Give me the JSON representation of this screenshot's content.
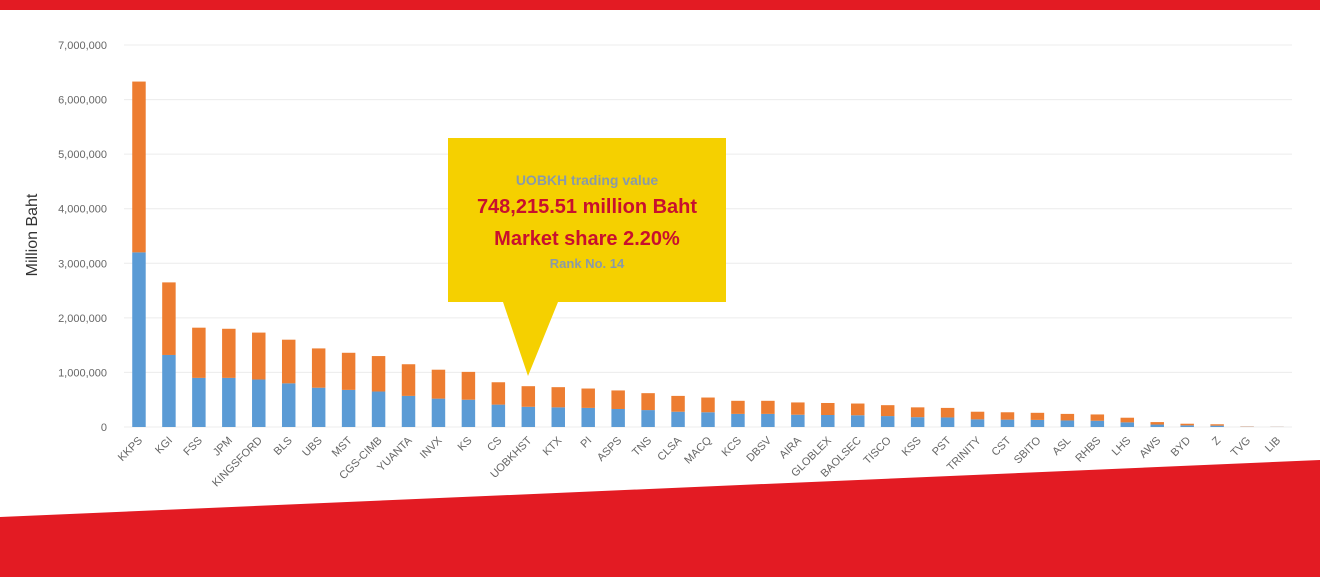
{
  "colors": {
    "accent_red": "#e31b23",
    "series_bottom": "#5b9bd5",
    "series_top": "#ed7d31",
    "callout_bg": "#f5d000",
    "grid": "#ececec"
  },
  "chart_data": {
    "type": "bar",
    "stacked": true,
    "ylabel": "Million Baht",
    "ylim": [
      0,
      7000000
    ],
    "yticks": [
      "7,000,000",
      "6,000,000",
      "5,000,000",
      "4,000,000",
      "3,000,000",
      "2,000,000",
      "1,000,000",
      "0"
    ],
    "ytick_values": [
      7000000,
      6000000,
      5000000,
      4000000,
      3000000,
      2000000,
      1000000,
      0
    ],
    "grid": true,
    "categories": [
      "KKPS",
      "KGI",
      "FSS",
      "JPM",
      "KINGSFORD",
      "BLS",
      "UBS",
      "MST",
      "CGS-CIMB",
      "YUANTA",
      "INVX",
      "KS",
      "CS",
      "UOBKHST",
      "KTX",
      "PI",
      "ASPS",
      "TNS",
      "CLSA",
      "MACQ",
      "KCS",
      "DBSV",
      "AIRA",
      "GLOBLEX",
      "BAOLSEC",
      "TISCO",
      "KSS",
      "PST",
      "TRINITY",
      "CST",
      "SBITO",
      "ASL",
      "RHBS",
      "LHS",
      "AWS",
      "BYD",
      "Z",
      "TVG",
      "LIB"
    ],
    "series": [
      {
        "values": [
          3200000,
          1320000,
          900000,
          900000,
          870000,
          800000,
          720000,
          680000,
          650000,
          570000,
          520000,
          500000,
          410000,
          370000,
          360000,
          350000,
          330000,
          310000,
          280000,
          270000,
          240000,
          240000,
          225000,
          220000,
          215000,
          200000,
          180000,
          175000,
          140000,
          135000,
          130000,
          120000,
          115000,
          85000,
          45000,
          30000,
          25000,
          5000,
          2000
        ]
      },
      {
        "values": [
          3130000,
          1330000,
          920000,
          900000,
          860000,
          800000,
          720000,
          680000,
          650000,
          580000,
          530000,
          510000,
          410000,
          378000,
          370000,
          355000,
          340000,
          310000,
          290000,
          270000,
          240000,
          240000,
          225000,
          220000,
          215000,
          200000,
          180000,
          175000,
          140000,
          135000,
          130000,
          120000,
          115000,
          85000,
          45000,
          30000,
          25000,
          5000,
          2000
        ]
      }
    ]
  },
  "callout": {
    "line1": "UOBKH trading value",
    "line2": "748,215.51 million Baht",
    "line3": "Market share 2.20%",
    "line4": "Rank No. 14"
  }
}
